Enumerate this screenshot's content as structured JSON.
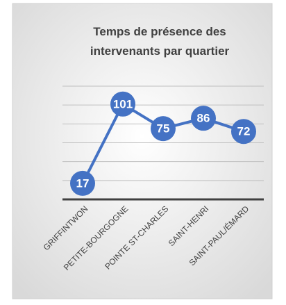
{
  "chart_data": {
    "type": "line",
    "title": "Temps de présence des intervenants par quartier",
    "categories": [
      "GRIFFINTWON",
      "PETITE-BOURGOGNE",
      "POINTE ST-CHARLES",
      "SAINT-HENRI",
      "SAINT-PAUL/ÉMARD"
    ],
    "values": [
      17,
      101,
      75,
      86,
      72
    ],
    "color": "#4472c4",
    "ylim": [
      0,
      120
    ],
    "yticks": [
      0,
      20,
      40,
      60,
      80,
      100,
      120
    ],
    "grid": true
  }
}
